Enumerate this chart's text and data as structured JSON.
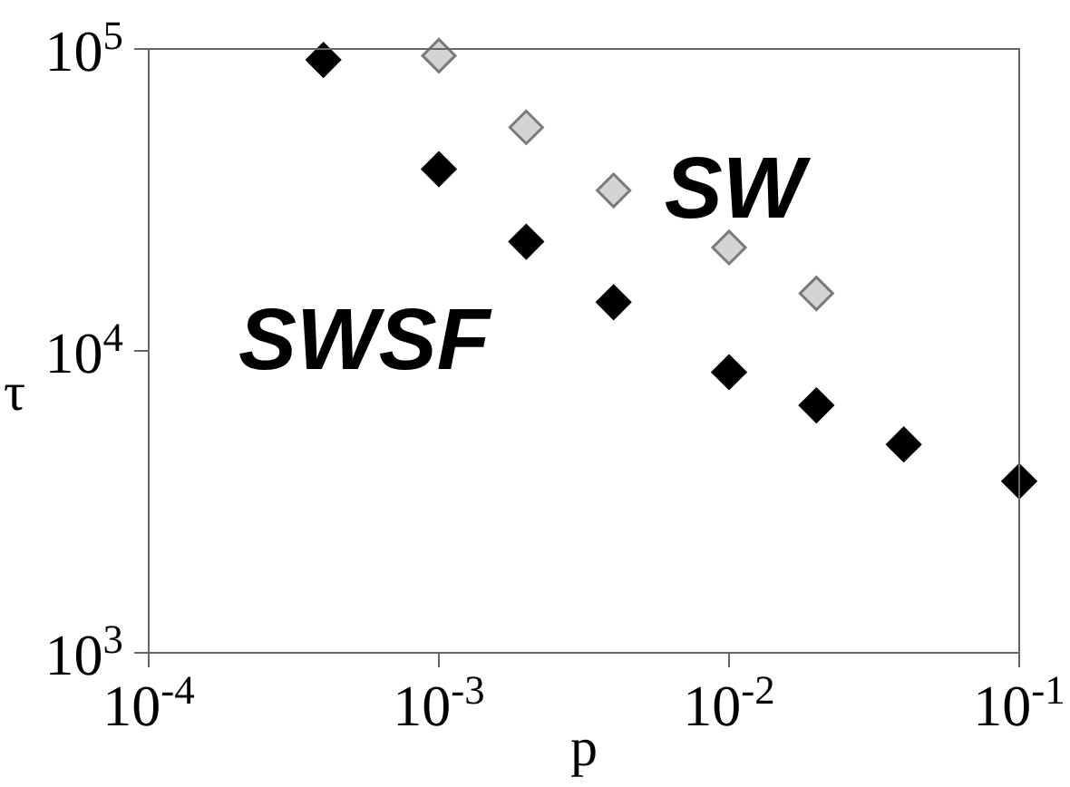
{
  "chart_data": {
    "type": "scatter",
    "xlabel": "p",
    "ylabel": "τ",
    "log": "xy",
    "grid": false,
    "legend": false,
    "marker": "diamond",
    "xlim": [
      0.0001,
      0.1
    ],
    "ylim": [
      1000,
      100000
    ],
    "xticks": [
      {
        "value": 0.0001,
        "label": "10$^{-4}$"
      },
      {
        "value": 0.001,
        "label": "10$^{-3}$"
      },
      {
        "value": 0.01,
        "label": "10$^{-2}$"
      },
      {
        "value": 0.1,
        "label": "10$^{-1}$"
      }
    ],
    "yticks": [
      {
        "value": 1000,
        "label": "10$^{3}$"
      },
      {
        "value": 10000,
        "label": "10$^{4}$"
      },
      {
        "value": 100000,
        "label": "10$^{5}$"
      }
    ],
    "series": [
      {
        "name": "SWSF",
        "color": "#000000",
        "x": [
          0.0004,
          0.001,
          0.002,
          0.004,
          0.01,
          0.02,
          0.04,
          0.1
        ],
        "values": [
          92000,
          40000,
          23000,
          14500,
          8500,
          6600,
          4900,
          3700
        ]
      },
      {
        "name": "SW",
        "color": "#d4d4d4",
        "x": [
          0.001,
          0.002,
          0.004,
          0.01,
          0.02
        ],
        "values": [
          95000,
          55000,
          34000,
          22000,
          15500
        ]
      }
    ]
  }
}
